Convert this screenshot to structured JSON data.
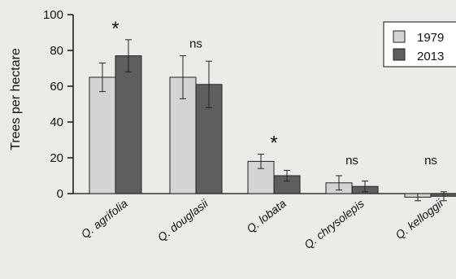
{
  "chart_data": {
    "type": "bar",
    "ylabel": "Trees per hectare",
    "ylim": [
      0,
      100
    ],
    "yticks": [
      0,
      20,
      40,
      60,
      80,
      100
    ],
    "categories": [
      "Q. agrifolia",
      "Q. douglasii",
      "Q. lobata",
      "Q. chrysolepis",
      "Q. kelloggii"
    ],
    "significance": [
      "*",
      "ns",
      "*",
      "ns",
      "ns"
    ],
    "series": [
      {
        "name": "1979",
        "color": "#d4d4d2",
        "values": [
          65,
          65,
          18,
          6,
          -2
        ],
        "errors": [
          8,
          12,
          4,
          4,
          2
        ]
      },
      {
        "name": "2013",
        "color": "#5e5e5e",
        "values": [
          77,
          61,
          10,
          4,
          -1.5
        ],
        "errors": [
          9,
          13,
          3,
          3,
          2.5
        ]
      }
    ],
    "legend_position": "top-right",
    "grid": false
  }
}
